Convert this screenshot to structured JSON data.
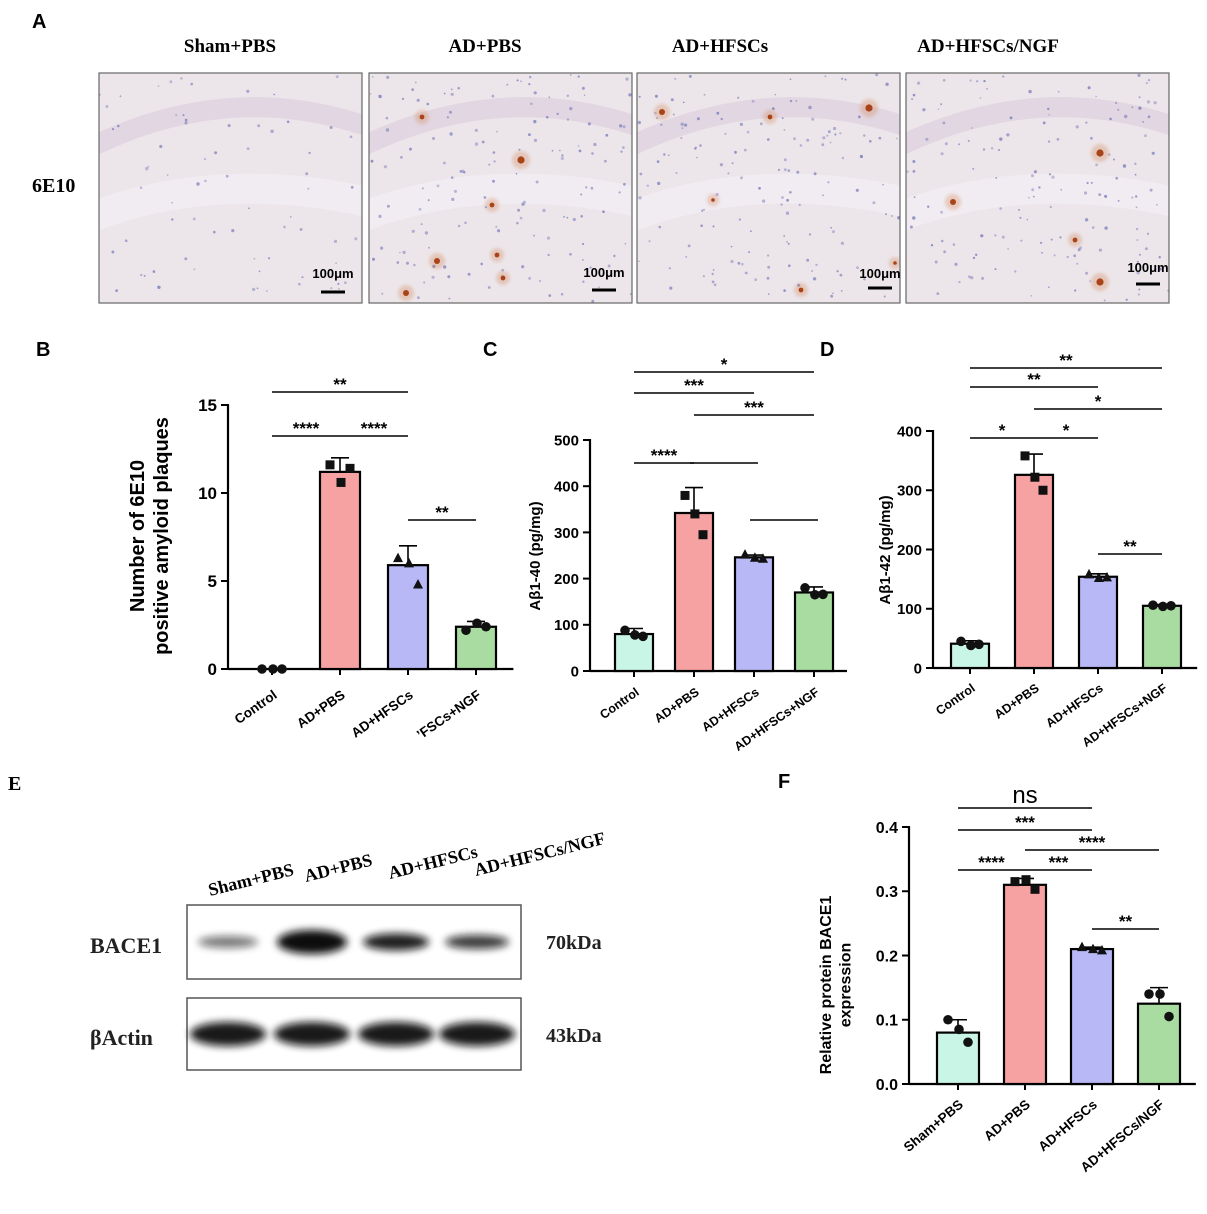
{
  "colors": {
    "control": "#c8f5e6",
    "ad_pbs": "#f7a2a2",
    "ad_hfscs": "#b7b8f5",
    "ad_hfscs_ngf": "#a8dca0",
    "tissue": "#ece6ea"
  },
  "panel_a": {
    "letter": "A",
    "columns": [
      "Sham+PBS",
      "AD+PBS",
      "AD+HFSCs",
      "AD+HFSCs/NGF"
    ],
    "row_label": "6E10",
    "scale_bar": "100μm"
  },
  "chart_data": [
    {
      "id": "B",
      "type": "bar",
      "letter": "B",
      "ylabel": [
        "Number of 6E10",
        "positive amyloid plaques"
      ],
      "categories": [
        "Control",
        "AD+PBS",
        "AD+HFSCs",
        "’FSCs+NGF"
      ],
      "values": [
        0.0,
        11.2,
        5.9,
        2.4
      ],
      "errors": [
        0.0,
        0.8,
        1.1,
        0.3
      ],
      "points": [
        [
          0,
          0,
          0
        ],
        [
          11.6,
          10.6,
          11.4
        ],
        [
          6.3,
          6.0,
          4.8
        ],
        [
          2.2,
          2.6,
          2.4
        ]
      ],
      "markers": [
        "circle",
        "square",
        "triangle",
        "circle"
      ],
      "ylim": [
        0,
        15
      ],
      "yticks": [
        0,
        5,
        10,
        15
      ],
      "significance": [
        {
          "from": 0,
          "to": 2,
          "label": "**"
        },
        {
          "from": 0,
          "to": 1,
          "label": "****"
        },
        {
          "from": 1,
          "to": 2,
          "label": "****"
        },
        {
          "from": 2,
          "to": 3,
          "label": "**"
        }
      ]
    },
    {
      "id": "C",
      "type": "bar",
      "letter": "C",
      "ylabel": [
        "Aβ1-40 (pg/mg)"
      ],
      "categories": [
        "Control",
        "AD+PBS",
        "AD+HFSCs",
        "AD+HFSCs+NGF"
      ],
      "values": [
        80,
        342,
        246,
        170
      ],
      "errors": [
        12,
        55,
        5,
        12
      ],
      "points": [
        [
          88,
          78,
          75
        ],
        [
          380,
          340,
          295
        ],
        [
          252,
          245,
          243
        ],
        [
          180,
          165,
          166
        ]
      ],
      "markers": [
        "circle",
        "square",
        "triangle",
        "circle"
      ],
      "ylim": [
        0,
        500
      ],
      "yticks": [
        0,
        100,
        200,
        300,
        400,
        500
      ],
      "significance": [
        {
          "from": 0,
          "to": 3,
          "label": "*"
        },
        {
          "from": 0,
          "to": 2,
          "label": "***"
        },
        {
          "from": 1,
          "to": 3,
          "label": "***"
        },
        {
          "from": 0,
          "to": 1,
          "label": "****"
        },
        {
          "from": 1,
          "to": 2,
          "label": ""
        },
        {
          "from": 2,
          "to": 3,
          "label": ""
        }
      ]
    },
    {
      "id": "D",
      "type": "bar",
      "letter": "D",
      "ylabel": [
        "Aβ1-42 (pg/mg)"
      ],
      "categories": [
        "Control",
        "AD+PBS",
        "AD+HFSCs",
        "AD+HFSCs+NGF"
      ],
      "values": [
        41,
        326,
        154,
        105
      ],
      "errors": [
        5,
        35,
        5,
        2
      ],
      "points": [
        [
          45,
          38,
          40
        ],
        [
          358,
          322,
          300
        ],
        [
          158,
          152,
          153
        ],
        [
          106,
          104,
          105
        ]
      ],
      "markers": [
        "circle",
        "square",
        "triangle",
        "circle"
      ],
      "ylim": [
        0,
        400
      ],
      "yticks": [
        0,
        100,
        200,
        300,
        400
      ],
      "significance": [
        {
          "from": 0,
          "to": 3,
          "label": "**"
        },
        {
          "from": 0,
          "to": 2,
          "label": "**"
        },
        {
          "from": 1,
          "to": 3,
          "label": "*"
        },
        {
          "from": 0,
          "to": 1,
          "label": "*"
        },
        {
          "from": 1,
          "to": 2,
          "label": "*"
        },
        {
          "from": 2,
          "to": 3,
          "label": "**"
        }
      ]
    },
    {
      "id": "F",
      "type": "bar",
      "letter": "F",
      "ylabel": [
        "Relative  protein BACE1",
        "expression"
      ],
      "categories": [
        "Sham+PBS",
        "AD+PBS",
        "AD+HFSCs",
        "AD+HFSCs/NGF"
      ],
      "values": [
        0.08,
        0.31,
        0.21,
        0.125
      ],
      "errors": [
        0.02,
        0.01,
        0.003,
        0.025
      ],
      "points": [
        [
          0.1,
          0.085,
          0.065
        ],
        [
          0.315,
          0.318,
          0.303
        ],
        [
          0.213,
          0.21,
          0.208
        ],
        [
          0.14,
          0.14,
          0.105
        ]
      ],
      "markers": [
        "circle",
        "square",
        "triangle",
        "circle"
      ],
      "ylim": [
        0,
        0.4
      ],
      "yticks": [
        0.0,
        0.1,
        0.2,
        0.3,
        0.4
      ],
      "tick_format": "fixed1",
      "significance": [
        {
          "from": 0,
          "to": 2,
          "label": "ns"
        },
        {
          "from": 0,
          "to": 2,
          "label": "***"
        },
        {
          "from": 1,
          "to": 3,
          "label": "****"
        },
        {
          "from": 0,
          "to": 1,
          "label": "****"
        },
        {
          "from": 1,
          "to": 2,
          "label": "***"
        },
        {
          "from": 2,
          "to": 3,
          "label": "**"
        }
      ]
    }
  ],
  "panel_e": {
    "letter": "E",
    "lanes": [
      "Sham+PBS",
      "AD+PBS",
      "AD+HFSCs",
      "AD+HFSCs/NGF"
    ],
    "rows": [
      {
        "label": "BACE1",
        "size": "70kDa"
      },
      {
        "label": "βActin",
        "size": "43kDa"
      }
    ]
  }
}
